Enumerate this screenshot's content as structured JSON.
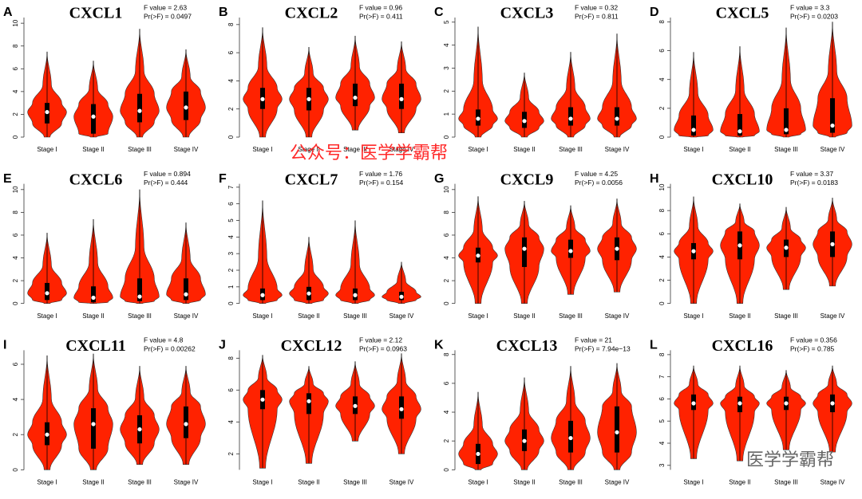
{
  "chart_data": [
    {
      "type": "violin",
      "panel": "A",
      "title": "CXCL1",
      "f_label": "F value = 2.63",
      "p_label": "Pr(>F) = 0.0497",
      "categories": [
        "Stage I",
        "Stage II",
        "Stage III",
        "Stage IV"
      ],
      "color": "#ff2200",
      "ylim": [
        0,
        10.5
      ],
      "yticks": [
        0,
        2,
        4,
        6,
        8,
        10
      ],
      "stats": [
        {
          "min": 0,
          "q1": 1.2,
          "median": 2.2,
          "q3": 3,
          "max": 7.5
        },
        {
          "min": 0,
          "q1": 0.3,
          "median": 1.8,
          "q3": 2.9,
          "max": 6.7
        },
        {
          "min": 0,
          "q1": 1.3,
          "median": 2.3,
          "q3": 3.8,
          "max": 9.5
        },
        {
          "min": 0,
          "q1": 1.5,
          "median": 2.6,
          "q3": 4,
          "max": 7.7
        }
      ]
    },
    {
      "type": "violin",
      "panel": "B",
      "title": "CXCL2",
      "f_label": "F value = 0.96",
      "p_label": "Pr(>F) = 0.411",
      "categories": [
        "Stage I",
        "Stage II",
        "Stage III",
        "Stage IV"
      ],
      "color": "#ff2200",
      "ylim": [
        0,
        8.5
      ],
      "yticks": [
        0,
        2,
        4,
        6,
        8
      ],
      "stats": [
        {
          "min": 0,
          "q1": 2,
          "median": 2.7,
          "q3": 3.5,
          "max": 7.8
        },
        {
          "min": 0,
          "q1": 1.9,
          "median": 2.7,
          "q3": 3.5,
          "max": 6.4
        },
        {
          "min": 0.5,
          "q1": 2.2,
          "median": 2.8,
          "q3": 3.8,
          "max": 7.2
        },
        {
          "min": 0.3,
          "q1": 2,
          "median": 2.7,
          "q3": 3.8,
          "max": 6.8
        }
      ]
    },
    {
      "type": "violin",
      "panel": "C",
      "title": "CXCL3",
      "f_label": "F value = 0.32",
      "p_label": "Pr(>F) = 0.811",
      "categories": [
        "Stage I",
        "Stage II",
        "Stage III",
        "Stage IV"
      ],
      "color": "#ff2200",
      "ylim": [
        0,
        5.2
      ],
      "yticks": [
        0,
        1,
        2,
        3,
        4,
        5
      ],
      "stats": [
        {
          "min": 0,
          "q1": 0.5,
          "median": 0.8,
          "q3": 1.2,
          "max": 4.8
        },
        {
          "min": 0,
          "q1": 0.4,
          "median": 0.7,
          "q3": 1.1,
          "max": 2.8
        },
        {
          "min": 0,
          "q1": 0.5,
          "median": 0.8,
          "q3": 1.3,
          "max": 3.7
        },
        {
          "min": 0,
          "q1": 0.5,
          "median": 0.8,
          "q3": 1.3,
          "max": 4.5
        }
      ]
    },
    {
      "type": "violin",
      "panel": "D",
      "title": "CXCL5",
      "f_label": "F value = 3.3",
      "p_label": "Pr(>F) = 0.0203",
      "categories": [
        "Stage I",
        "Stage II",
        "Stage III",
        "Stage IV"
      ],
      "color": "#ff2200",
      "ylim": [
        0,
        8.3
      ],
      "yticks": [
        0,
        2,
        4,
        6,
        8
      ],
      "stats": [
        {
          "min": 0,
          "q1": 0.1,
          "median": 0.5,
          "q3": 1.5,
          "max": 5.9
        },
        {
          "min": 0,
          "q1": 0.1,
          "median": 0.4,
          "q3": 1.6,
          "max": 6.3
        },
        {
          "min": 0,
          "q1": 0.2,
          "median": 0.5,
          "q3": 2,
          "max": 7.6
        },
        {
          "min": 0,
          "q1": 0.3,
          "median": 0.8,
          "q3": 2.7,
          "max": 8
        }
      ]
    },
    {
      "type": "violin",
      "panel": "E",
      "title": "CXCL6",
      "f_label": "F value = 0.894",
      "p_label": "Pr(>F) = 0.444",
      "categories": [
        "Stage I",
        "Stage II",
        "Stage III",
        "Stage IV"
      ],
      "color": "#ff2200",
      "ylim": [
        0,
        10.5
      ],
      "yticks": [
        0,
        2,
        4,
        6,
        8,
        10
      ],
      "stats": [
        {
          "min": 0,
          "q1": 0.3,
          "median": 0.9,
          "q3": 1.8,
          "max": 6.2
        },
        {
          "min": 0,
          "q1": 0.1,
          "median": 0.5,
          "q3": 1.5,
          "max": 7.4
        },
        {
          "min": 0,
          "q1": 0.2,
          "median": 0.6,
          "q3": 2.2,
          "max": 10
        },
        {
          "min": 0,
          "q1": 0.3,
          "median": 0.8,
          "q3": 2.2,
          "max": 7.1
        }
      ]
    },
    {
      "type": "violin",
      "panel": "F",
      "title": "CXCL7",
      "f_label": "F value = 1.76",
      "p_label": "Pr(>F) = 0.154",
      "categories": [
        "Stage I",
        "Stage II",
        "Stage III",
        "Stage IV"
      ],
      "color": "#ff2200",
      "ylim": [
        0,
        7.2
      ],
      "yticks": [
        0,
        1,
        2,
        3,
        4,
        5,
        6,
        7
      ],
      "stats": [
        {
          "min": 0,
          "q1": 0.2,
          "median": 0.5,
          "q3": 0.9,
          "max": 6.2
        },
        {
          "min": 0,
          "q1": 0.2,
          "median": 0.6,
          "q3": 1,
          "max": 4
        },
        {
          "min": 0,
          "q1": 0.2,
          "median": 0.5,
          "q3": 0.9,
          "max": 5
        },
        {
          "min": 0,
          "q1": 0.2,
          "median": 0.4,
          "q3": 0.7,
          "max": 2.5
        }
      ]
    },
    {
      "type": "violin",
      "panel": "G",
      "title": "CXCL9",
      "f_label": "F value = 4.25",
      "p_label": "Pr(>F) = 0.0056",
      "categories": [
        "Stage I",
        "Stage II",
        "Stage III",
        "Stage IV"
      ],
      "color": "#ff2200",
      "ylim": [
        0,
        10.5
      ],
      "yticks": [
        0,
        2,
        4,
        6,
        8,
        10
      ],
      "stats": [
        {
          "min": 0,
          "q1": 3.6,
          "median": 4.2,
          "q3": 4.9,
          "max": 9.4
        },
        {
          "min": 0,
          "q1": 3.2,
          "median": 4.8,
          "q3": 5.8,
          "max": 9
        },
        {
          "min": 0.8,
          "q1": 4,
          "median": 4.6,
          "q3": 5.6,
          "max": 8.6
        },
        {
          "min": 1,
          "q1": 3.8,
          "median": 4.8,
          "q3": 5.8,
          "max": 9.2
        }
      ]
    },
    {
      "type": "violin",
      "panel": "H",
      "title": "CXCL10",
      "f_label": "F value = 3.37",
      "p_label": "Pr(>F) = 0.0183",
      "categories": [
        "Stage I",
        "Stage II",
        "Stage III",
        "Stage IV"
      ],
      "color": "#ff2200",
      "ylim": [
        0,
        10.3
      ],
      "yticks": [
        0,
        2,
        4,
        6,
        8,
        10
      ],
      "stats": [
        {
          "min": 0,
          "q1": 3.8,
          "median": 4.5,
          "q3": 5.2,
          "max": 9.2
        },
        {
          "min": 0,
          "q1": 3.8,
          "median": 5,
          "q3": 6.2,
          "max": 8.6
        },
        {
          "min": 1.2,
          "q1": 4,
          "median": 4.8,
          "q3": 5.5,
          "max": 8.3
        },
        {
          "min": 1.5,
          "q1": 4,
          "median": 5.1,
          "q3": 6.2,
          "max": 9.1
        }
      ]
    },
    {
      "type": "violin",
      "panel": "I",
      "title": "CXCL11",
      "f_label": "F value = 4.8",
      "p_label": "Pr(>F) = 0.00262",
      "categories": [
        "Stage I",
        "Stage II",
        "Stage III",
        "Stage IV"
      ],
      "color": "#ff2200",
      "ylim": [
        0,
        6.8
      ],
      "yticks": [
        0,
        2,
        4,
        6
      ],
      "stats": [
        {
          "min": 0,
          "q1": 1.4,
          "median": 2,
          "q3": 2.7,
          "max": 6.5
        },
        {
          "min": 0,
          "q1": 1.2,
          "median": 2.6,
          "q3": 3.5,
          "max": 6.6
        },
        {
          "min": 0.3,
          "q1": 1.5,
          "median": 2.3,
          "q3": 3.1,
          "max": 5.9
        },
        {
          "min": 0.3,
          "q1": 1.8,
          "median": 2.6,
          "q3": 3.6,
          "max": 5.9
        }
      ]
    },
    {
      "type": "violin",
      "panel": "J",
      "title": "CXCL12",
      "f_label": "F value = 2.12",
      "p_label": "Pr(>F) = 0.0963",
      "categories": [
        "Stage I",
        "Stage II",
        "Stage III",
        "Stage IV"
      ],
      "color": "#ff2200",
      "ylim": [
        1,
        8.5
      ],
      "yticks": [
        2,
        4,
        6,
        8
      ],
      "stats": [
        {
          "min": 1.1,
          "q1": 4.8,
          "median": 5.4,
          "q3": 6,
          "max": 8.2
        },
        {
          "min": 1.4,
          "q1": 4.5,
          "median": 5.3,
          "q3": 5.8,
          "max": 7.5
        },
        {
          "min": 2.8,
          "q1": 4.5,
          "median": 5,
          "q3": 5.6,
          "max": 7.8
        },
        {
          "min": 2,
          "q1": 4.2,
          "median": 4.8,
          "q3": 5.6,
          "max": 8.3
        }
      ]
    },
    {
      "type": "violin",
      "panel": "K",
      "title": "CXCL13",
      "f_label": "F value = 21",
      "p_label": "Pr(>F) = 7.94e−13",
      "categories": [
        "Stage I",
        "Stage II",
        "Stage III",
        "Stage IV"
      ],
      "color": "#ff2200",
      "ylim": [
        0,
        8.3
      ],
      "yticks": [
        0,
        2,
        4,
        6,
        8
      ],
      "stats": [
        {
          "min": 0,
          "q1": 0.4,
          "median": 1.1,
          "q3": 1.8,
          "max": 5.4
        },
        {
          "min": 0,
          "q1": 1.3,
          "median": 2,
          "q3": 2.8,
          "max": 6.4
        },
        {
          "min": 0,
          "q1": 1.2,
          "median": 2.2,
          "q3": 3.4,
          "max": 7.2
        },
        {
          "min": 0,
          "q1": 1.2,
          "median": 2.6,
          "q3": 4.4,
          "max": 7.4
        }
      ]
    },
    {
      "type": "violin",
      "panel": "L",
      "title": "CXCL16",
      "f_label": "F value = 0.356",
      "p_label": "Pr(>F) = 0.785",
      "categories": [
        "Stage I",
        "Stage II",
        "Stage III",
        "Stage IV"
      ],
      "color": "#ff2200",
      "ylim": [
        2.8,
        8.2
      ],
      "yticks": [
        3,
        4,
        5,
        6,
        7,
        8
      ],
      "stats": [
        {
          "min": 3.3,
          "q1": 5.5,
          "median": 5.8,
          "q3": 6.2,
          "max": 7.5
        },
        {
          "min": 3.2,
          "q1": 5.4,
          "median": 5.8,
          "q3": 6.1,
          "max": 7.5
        },
        {
          "min": 3.7,
          "q1": 5.5,
          "median": 5.8,
          "q3": 6.1,
          "max": 7.3
        },
        {
          "min": 3.6,
          "q1": 5.4,
          "median": 5.8,
          "q3": 6.2,
          "max": 7.5
        }
      ]
    }
  ],
  "watermarks": [
    "公众号：医学学霸帮",
    "医学学霸帮"
  ]
}
